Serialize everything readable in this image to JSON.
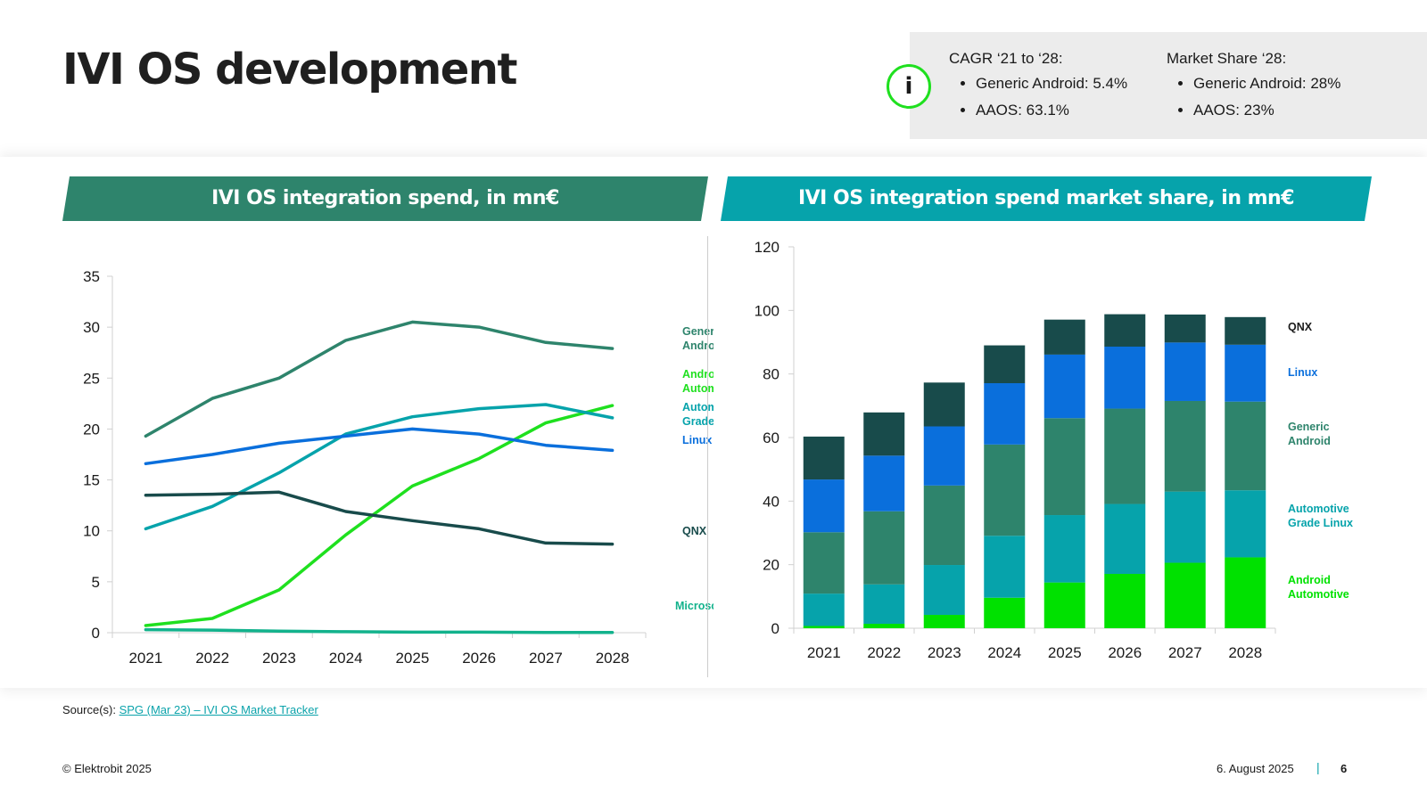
{
  "title": "IVI OS development",
  "info": {
    "icon": "info-icon",
    "col1": {
      "heading": "CAGR ‘21 to ‘28:",
      "items": [
        "Generic Android: 5.4%",
        "AAOS: 63.1%"
      ]
    },
    "col2": {
      "heading": "Market Share ‘28:",
      "items": [
        "Generic Android: 28%",
        "AAOS: 23%"
      ]
    }
  },
  "headers": {
    "left": "IVI OS integration spend, in mn€",
    "right": "IVI OS integration spend market share, in mn€"
  },
  "chart_data": [
    {
      "type": "line",
      "categories": [
        "2021",
        "2022",
        "2023",
        "2024",
        "2025",
        "2026",
        "2027",
        "2028"
      ],
      "ylim": [
        0,
        35
      ],
      "yticks": [
        0,
        5,
        10,
        15,
        20,
        25,
        30,
        35
      ],
      "series": [
        {
          "name": "Generic Android",
          "label_lines": [
            "Generic",
            "Android"
          ],
          "color": "#2e846c",
          "values": [
            19.3,
            23,
            25,
            28.7,
            30.5,
            30,
            28.5,
            27.9
          ]
        },
        {
          "name": "Android Automotive",
          "label_lines": [
            "Android",
            "Automotive"
          ],
          "color": "#1fe01f",
          "values": [
            0.7,
            1.4,
            4.2,
            9.6,
            14.4,
            17.1,
            20.6,
            22.3
          ]
        },
        {
          "name": "Automotive Grade Linux",
          "label_lines": [
            "Automotive",
            "Grade Linux"
          ],
          "color": "#06a3ab",
          "values": [
            10.2,
            12.4,
            15.7,
            19.5,
            21.2,
            22,
            22.4,
            21.1
          ]
        },
        {
          "name": "Linux",
          "label_lines": [
            "Linux"
          ],
          "color": "#0a6fdc",
          "values": [
            16.6,
            17.5,
            18.6,
            19.3,
            20,
            19.5,
            18.4,
            17.9
          ]
        },
        {
          "name": "QNX",
          "label_lines": [
            "QNX"
          ],
          "color": "#184b4b",
          "values": [
            13.5,
            13.6,
            13.8,
            11.9,
            11,
            10.2,
            8.8,
            8.7
          ]
        },
        {
          "name": "Microsoft",
          "label_lines": [
            "Microsoft"
          ],
          "color": "#12b28c",
          "values": [
            0.3,
            0.25,
            0.15,
            0.1,
            0.05,
            0.05,
            0.03,
            0.02
          ]
        }
      ]
    },
    {
      "type": "bar",
      "stacked": true,
      "categories": [
        "2021",
        "2022",
        "2023",
        "2024",
        "2025",
        "2026",
        "2027",
        "2028"
      ],
      "ylim": [
        0,
        120
      ],
      "yticks": [
        0,
        20,
        40,
        60,
        80,
        100,
        120
      ],
      "series": [
        {
          "name": "Android Automotive",
          "label_lines": [
            "Android",
            "Automotive"
          ],
          "color": "#00e100",
          "values": [
            0.7,
            1.4,
            4.2,
            9.6,
            14.4,
            17.1,
            20.6,
            22.3
          ]
        },
        {
          "name": "Automotive Grade Linux",
          "label_lines": [
            "Automotive",
            "Grade Linux"
          ],
          "color": "#06a3ab",
          "values": [
            10.2,
            12.4,
            15.7,
            19.5,
            21.2,
            22,
            22.4,
            21.1
          ]
        },
        {
          "name": "Generic Android",
          "label_lines": [
            "Generic",
            "Android"
          ],
          "color": "#2e846c",
          "values": [
            19.3,
            23,
            25,
            28.7,
            30.5,
            30,
            28.5,
            27.9
          ]
        },
        {
          "name": "Linux",
          "label_lines": [
            "Linux"
          ],
          "color": "#0a6fdc",
          "values": [
            16.6,
            17.5,
            18.6,
            19.3,
            20,
            19.5,
            18.4,
            17.9
          ]
        },
        {
          "name": "QNX",
          "label_lines": [
            "QNX"
          ],
          "color": "#184b4b",
          "values": [
            13.5,
            13.6,
            13.8,
            11.9,
            11,
            10.2,
            8.8,
            8.7
          ]
        }
      ]
    }
  ],
  "source": {
    "prefix": "Source(s): ",
    "link": "SPG (Mar 23) – IVI OS Market Tracker"
  },
  "footer": {
    "copyright": "© Elektrobit 2025",
    "date": "6. August 2025",
    "separator": "|",
    "page": "6"
  }
}
